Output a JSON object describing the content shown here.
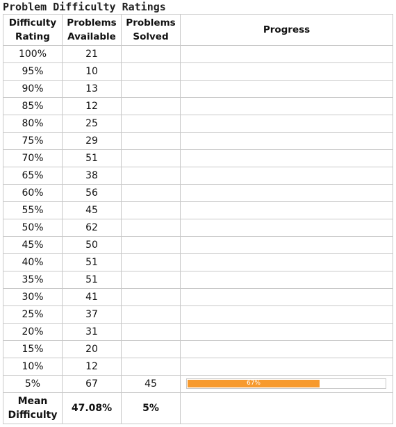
{
  "title": "Problem Difficulty Ratings",
  "columns": {
    "rating": "Difficulty\nRating",
    "available": "Problems\nAvailable",
    "solved": "Problems\nSolved",
    "progress": "Progress"
  },
  "rows": [
    {
      "rating": "100%",
      "available": "21",
      "solved": "",
      "progress": null
    },
    {
      "rating": "95%",
      "available": "10",
      "solved": "",
      "progress": null
    },
    {
      "rating": "90%",
      "available": "13",
      "solved": "",
      "progress": null
    },
    {
      "rating": "85%",
      "available": "12",
      "solved": "",
      "progress": null
    },
    {
      "rating": "80%",
      "available": "25",
      "solved": "",
      "progress": null
    },
    {
      "rating": "75%",
      "available": "29",
      "solved": "",
      "progress": null
    },
    {
      "rating": "70%",
      "available": "51",
      "solved": "",
      "progress": null
    },
    {
      "rating": "65%",
      "available": "38",
      "solved": "",
      "progress": null
    },
    {
      "rating": "60%",
      "available": "56",
      "solved": "",
      "progress": null
    },
    {
      "rating": "55%",
      "available": "45",
      "solved": "",
      "progress": null
    },
    {
      "rating": "50%",
      "available": "62",
      "solved": "",
      "progress": null
    },
    {
      "rating": "45%",
      "available": "50",
      "solved": "",
      "progress": null
    },
    {
      "rating": "40%",
      "available": "51",
      "solved": "",
      "progress": null
    },
    {
      "rating": "35%",
      "available": "51",
      "solved": "",
      "progress": null
    },
    {
      "rating": "30%",
      "available": "41",
      "solved": "",
      "progress": null
    },
    {
      "rating": "25%",
      "available": "37",
      "solved": "",
      "progress": null
    },
    {
      "rating": "20%",
      "available": "31",
      "solved": "",
      "progress": null
    },
    {
      "rating": "15%",
      "available": "20",
      "solved": "",
      "progress": null
    },
    {
      "rating": "10%",
      "available": "12",
      "solved": "",
      "progress": null
    },
    {
      "rating": "5%",
      "available": "67",
      "solved": "45",
      "progress": {
        "fraction": 0.67,
        "label": "67%"
      }
    }
  ],
  "footer": {
    "label": "Mean\nDifficulty",
    "available_value": "47.08%",
    "solved_value": "5%"
  },
  "colors": {
    "progress_fill": "#f79a2e",
    "grid": "#c8c8c8"
  }
}
